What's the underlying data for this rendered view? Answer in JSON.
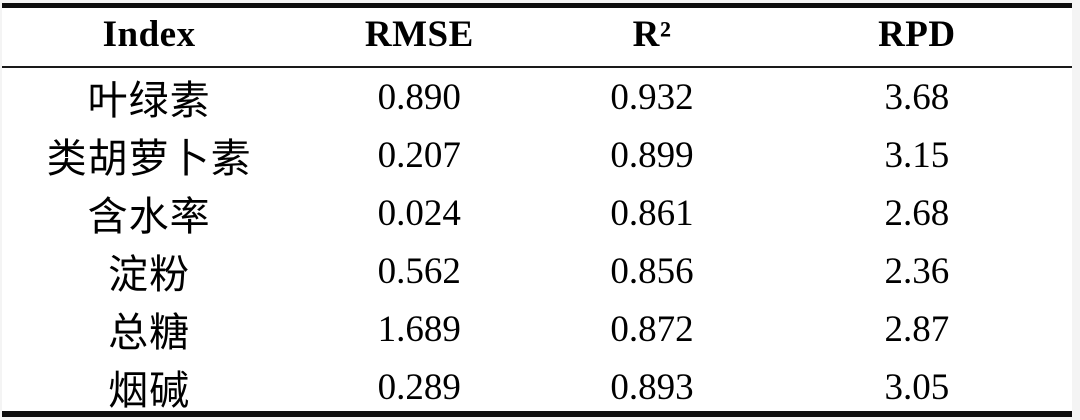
{
  "table": {
    "columns": [
      {
        "key": "index",
        "label": "Index"
      },
      {
        "key": "rmse",
        "label": "RMSE"
      },
      {
        "key": "r2",
        "label": "R²"
      },
      {
        "key": "rpd",
        "label": "RPD"
      }
    ],
    "rows": [
      {
        "index": "叶绿素",
        "rmse": "0.890",
        "r2": "0.932",
        "rpd": "3.68"
      },
      {
        "index": "类胡萝卜素",
        "rmse": "0.207",
        "r2": "0.899",
        "rpd": "3.15"
      },
      {
        "index": "含水率",
        "rmse": "0.024",
        "r2": "0.861",
        "rpd": "2.68"
      },
      {
        "index": "淀粉",
        "rmse": "0.562",
        "r2": "0.856",
        "rpd": "2.36"
      },
      {
        "index": "总糖",
        "rmse": "1.689",
        "r2": "0.872",
        "rpd": "2.87"
      },
      {
        "index": "烟碱",
        "rmse": "0.289",
        "r2": "0.893",
        "rpd": "3.05"
      }
    ]
  },
  "colors": {
    "background": "#f4f4f4",
    "table_background": "#ffffff",
    "rule": "#0d0d0d",
    "text": "#000000"
  }
}
